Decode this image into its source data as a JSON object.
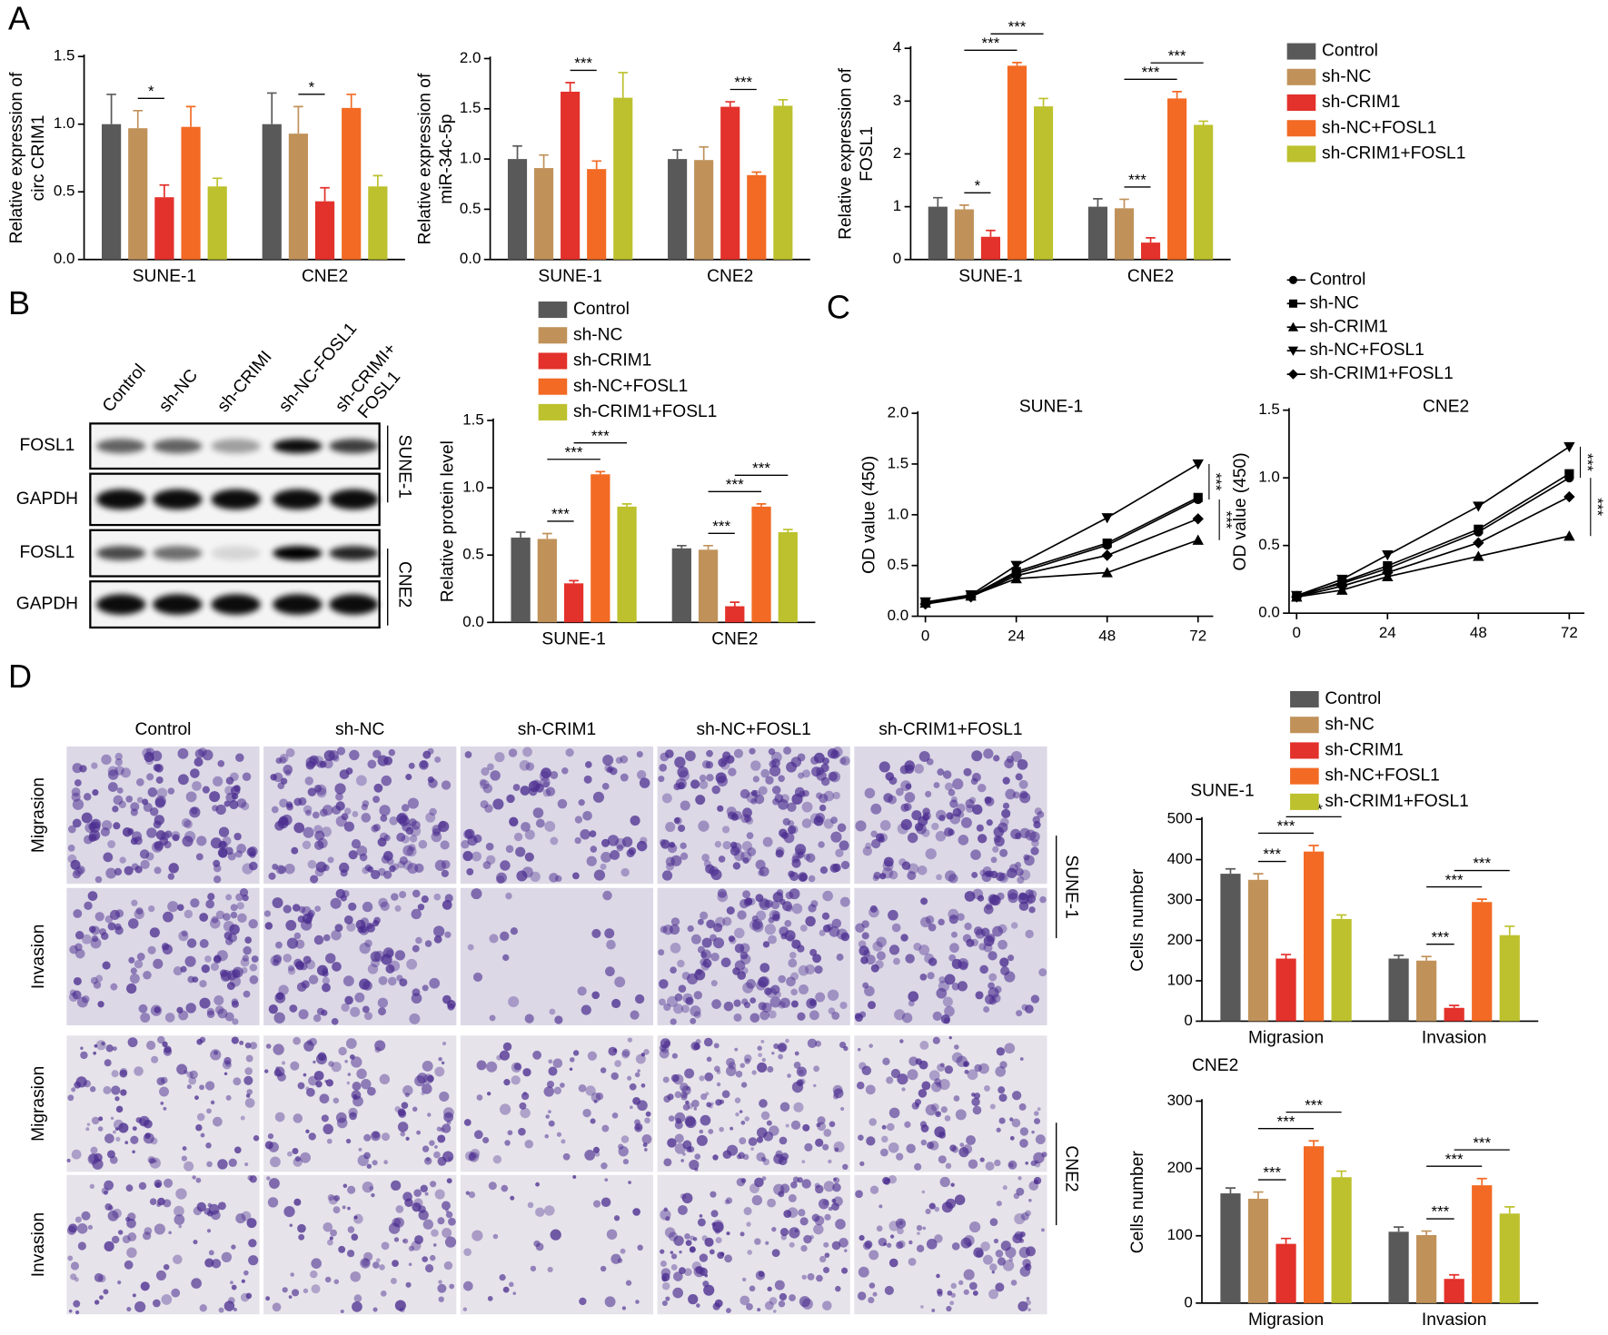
{
  "panel_labels": [
    "A",
    "B",
    "C",
    "D"
  ],
  "blot": {
    "lanes": [
      [
        "Control"
      ],
      [
        "sh-NC"
      ],
      [
        "sh-CRIMI"
      ],
      [
        "sh-NC-FOSL1"
      ],
      [
        "sh-CRIMI+",
        "FOSL1"
      ]
    ],
    "rows": [
      "FOSL1",
      "GAPDH",
      "FOSL1",
      "GAPDH"
    ],
    "cell_lines": [
      "SUNE-1",
      "CNE2"
    ]
  },
  "transwell": {
    "groups": [
      "Control",
      "sh-NC",
      "sh-CRIM1",
      "sh-NC+FOSL1",
      "sh-CRIM1+FOSL1"
    ],
    "rows": [
      "Migrasion",
      "Invasion",
      "Migrasion",
      "Invasion"
    ],
    "cell_lines": [
      "SUNE-1",
      "CNE2"
    ]
  },
  "chart_data": [
    {
      "type": "bar",
      "y_label": [
        "Relative expression of",
        "circ CRIM1"
      ],
      "categories": [
        "SUNE-1",
        "CNE2"
      ],
      "ylim": [
        0,
        1.5
      ],
      "yticks": [
        {
          "value": 0,
          "label": "0.0"
        },
        0.5,
        {
          "value": 1,
          "label": "1.0"
        },
        1.5
      ],
      "series": [
        {
          "color": "#595959",
          "values": [
            1.0,
            1.0
          ],
          "errors": [
            0.22,
            0.23
          ]
        },
        {
          "color": "#c0925a",
          "values": [
            0.97,
            0.93
          ],
          "errors": [
            0.13,
            0.2
          ]
        },
        {
          "color": "#e3312b",
          "values": [
            0.46,
            0.43
          ],
          "errors": [
            0.09,
            0.1
          ]
        },
        {
          "color": "#f26a24",
          "values": [
            0.98,
            1.12
          ],
          "errors": [
            0.15,
            0.1
          ]
        },
        {
          "color": "#bcc12d",
          "values": [
            0.54,
            0.54
          ],
          "errors": [
            0.06,
            0.08
          ]
        }
      ],
      "annotations": [
        {
          "text": "*",
          "category": 0,
          "series": [
            1,
            2
          ]
        },
        {
          "text": "*",
          "category": 1,
          "series": [
            1,
            2
          ]
        }
      ]
    },
    {
      "type": "bar",
      "y_label": [
        "Relative expression of",
        "miR-34c-5p"
      ],
      "categories": [
        "SUNE-1",
        "CNE2"
      ],
      "ylim": [
        0,
        2
      ],
      "yticks": [
        {
          "value": 0,
          "label": "0.0"
        },
        0.5,
        {
          "value": 1,
          "label": "1.0"
        },
        1.5,
        {
          "value": 2,
          "label": "2.0"
        }
      ],
      "series": [
        {
          "color": "#595959",
          "values": [
            1.0,
            1.0
          ],
          "errors": [
            0.13,
            0.09
          ]
        },
        {
          "color": "#c0925a",
          "values": [
            0.91,
            0.99
          ],
          "errors": [
            0.13,
            0.13
          ]
        },
        {
          "color": "#e3312b",
          "values": [
            1.67,
            1.52
          ],
          "errors": [
            0.09,
            0.05
          ]
        },
        {
          "color": "#f26a24",
          "values": [
            0.9,
            0.84
          ],
          "errors": [
            0.08,
            0.03
          ]
        },
        {
          "color": "#bcc12d",
          "values": [
            1.61,
            1.53
          ],
          "errors": [
            0.25,
            0.06
          ]
        }
      ],
      "annotations": [
        {
          "text": "***",
          "category": 0,
          "series": [
            2,
            3
          ]
        },
        {
          "text": "***",
          "category": 1,
          "series": [
            2,
            3
          ]
        }
      ]
    },
    {
      "type": "bar",
      "y_label": [
        "Relative expression of",
        "FOSL1"
      ],
      "categories": [
        "SUNE-1",
        "CNE2"
      ],
      "ylim": [
        0,
        4
      ],
      "yticks": [
        0,
        1,
        2,
        3,
        4
      ],
      "legend": true,
      "series": [
        {
          "name": "Control",
          "color": "#595959",
          "values": [
            1.0,
            1.0
          ],
          "errors": [
            0.17,
            0.15
          ]
        },
        {
          "name": "sh-NC",
          "color": "#c0925a",
          "values": [
            0.95,
            0.97
          ],
          "errors": [
            0.08,
            0.17
          ]
        },
        {
          "name": "sh-CRIM1",
          "color": "#e3312b",
          "values": [
            0.43,
            0.32
          ],
          "errors": [
            0.12,
            0.09
          ]
        },
        {
          "name": "sh-NC+FOSL1",
          "color": "#f26a24",
          "values": [
            3.67,
            3.05
          ],
          "errors": [
            0.06,
            0.13
          ]
        },
        {
          "name": "sh-CRIM1+FOSL1",
          "color": "#bcc12d",
          "values": [
            2.9,
            2.55
          ],
          "errors": [
            0.15,
            0.07
          ]
        }
      ],
      "annotations": [
        {
          "text": "*",
          "category": 0,
          "series": [
            1,
            2
          ]
        },
        {
          "text": "***",
          "category": 0,
          "series": [
            1,
            3
          ]
        },
        {
          "text": "***",
          "category": 0,
          "series": [
            2,
            4
          ]
        },
        {
          "text": "***",
          "category": 1,
          "series": [
            1,
            2
          ]
        },
        {
          "text": "***",
          "category": 1,
          "series": [
            1,
            3
          ]
        },
        {
          "text": "***",
          "category": 1,
          "series": [
            2,
            4
          ]
        }
      ]
    },
    {
      "type": "bar",
      "y_label": [
        "Relative protein level"
      ],
      "categories": [
        "SUNE-1",
        "CNE2"
      ],
      "ylim": [
        0,
        1.5
      ],
      "yticks": [
        {
          "value": 0,
          "label": "0.0"
        },
        0.5,
        {
          "value": 1,
          "label": "1.0"
        },
        1.5
      ],
      "legend": true,
      "series": [
        {
          "name": "Control",
          "color": "#595959",
          "values": [
            0.63,
            0.55
          ],
          "errors": [
            0.04,
            0.02
          ]
        },
        {
          "name": "sh-NC",
          "color": "#c0925a",
          "values": [
            0.62,
            0.54
          ],
          "errors": [
            0.04,
            0.03
          ]
        },
        {
          "name": "sh-CRIM1",
          "color": "#e3312b",
          "values": [
            0.29,
            0.12
          ],
          "errors": [
            0.02,
            0.03
          ]
        },
        {
          "name": "sh-NC+FOSL1",
          "color": "#f26a24",
          "values": [
            1.1,
            0.86
          ],
          "errors": [
            0.02,
            0.02
          ]
        },
        {
          "name": "sh-CRIM1+FOSL1",
          "color": "#bcc12d",
          "values": [
            0.86,
            0.67
          ],
          "errors": [
            0.02,
            0.02
          ]
        }
      ],
      "annotations": [
        {
          "text": "***",
          "category": 0,
          "series": [
            1,
            2
          ]
        },
        {
          "text": "***",
          "category": 0,
          "series": [
            1,
            3
          ]
        },
        {
          "text": "***",
          "category": 0,
          "series": [
            2,
            4
          ]
        },
        {
          "text": "***",
          "category": 1,
          "series": [
            1,
            2
          ]
        },
        {
          "text": "***",
          "category": 1,
          "series": [
            1,
            3
          ]
        },
        {
          "text": "***",
          "category": 1,
          "series": [
            2,
            4
          ]
        }
      ]
    },
    {
      "type": "line",
      "title": "SUNE-1",
      "y_label": [
        "OD value (450)"
      ],
      "x": [
        0,
        12,
        24,
        48,
        72
      ],
      "xlim": [
        -2,
        76
      ],
      "xticks": [
        0,
        24,
        48,
        72
      ],
      "ylim": [
        0,
        2
      ],
      "yticks": [
        {
          "value": 0,
          "label": "0.0"
        },
        0.5,
        {
          "value": 1,
          "label": "1.0"
        },
        1.5,
        {
          "value": 2,
          "label": "2.0"
        }
      ],
      "legend": true,
      "series": [
        {
          "name": "Control",
          "color": "#000000",
          "marker": "circle",
          "values": [
            0.13,
            0.2,
            0.42,
            0.7,
            1.15
          ]
        },
        {
          "name": "sh-NC",
          "color": "#000000",
          "marker": "square",
          "values": [
            0.14,
            0.2,
            0.44,
            0.72,
            1.17
          ]
        },
        {
          "name": "sh-CRIM1",
          "color": "#000000",
          "marker": "triangle-up",
          "values": [
            0.13,
            0.2,
            0.37,
            0.43,
            0.75
          ]
        },
        {
          "name": "sh-NC+FOSL1",
          "color": "#000000",
          "marker": "triangle-down",
          "values": [
            0.14,
            0.21,
            0.5,
            0.97,
            1.5
          ]
        },
        {
          "name": "sh-CRIM1+FOSL1",
          "color": "#000000",
          "marker": "diamond",
          "values": [
            0.12,
            0.19,
            0.4,
            0.6,
            0.96
          ]
        }
      ],
      "annotations": [
        {
          "text": "***",
          "series": [
            3,
            0
          ]
        },
        {
          "text": "***",
          "series": [
            0,
            2
          ]
        }
      ]
    },
    {
      "type": "line",
      "title": "CNE2",
      "y_label": [
        "OD value (450)"
      ],
      "x": [
        0,
        12,
        24,
        48,
        72
      ],
      "xlim": [
        -2,
        76
      ],
      "xticks": [
        0,
        24,
        48,
        72
      ],
      "ylim": [
        0,
        1.5
      ],
      "yticks": [
        {
          "value": 0,
          "label": "0.0"
        },
        0.5,
        {
          "value": 1,
          "label": "1.0"
        },
        1.5
      ],
      "series": [
        {
          "color": "#000000",
          "marker": "circle",
          "values": [
            0.13,
            0.22,
            0.33,
            0.6,
            1.0
          ]
        },
        {
          "color": "#000000",
          "marker": "square",
          "values": [
            0.12,
            0.23,
            0.35,
            0.62,
            1.03
          ]
        },
        {
          "color": "#000000",
          "marker": "triangle-up",
          "values": [
            0.12,
            0.17,
            0.27,
            0.42,
            0.57
          ]
        },
        {
          "color": "#000000",
          "marker": "triangle-down",
          "values": [
            0.13,
            0.25,
            0.43,
            0.79,
            1.23
          ]
        },
        {
          "color": "#000000",
          "marker": "diamond",
          "values": [
            0.12,
            0.2,
            0.3,
            0.52,
            0.86
          ]
        }
      ],
      "annotations": [
        {
          "text": "***",
          "series": [
            3,
            0
          ]
        },
        {
          "text": "***",
          "series": [
            0,
            2
          ]
        }
      ]
    },
    {
      "type": "bar",
      "title": "SUNE-1",
      "y_label": [
        "Cells number"
      ],
      "categories": [
        "Migrasion",
        "Invasion"
      ],
      "ylim": [
        0,
        500
      ],
      "yticks": [
        0,
        100,
        200,
        300,
        400,
        500
      ],
      "legend": true,
      "series": [
        {
          "name": "Control",
          "color": "#595959",
          "values": [
            365,
            155
          ],
          "errors": [
            12,
            8
          ]
        },
        {
          "name": "sh-NC",
          "color": "#c0925a",
          "values": [
            350,
            150
          ],
          "errors": [
            15,
            10
          ]
        },
        {
          "name": "sh-CRIM1",
          "color": "#e3312b",
          "values": [
            155,
            33
          ],
          "errors": [
            10,
            6
          ]
        },
        {
          "name": "sh-NC+FOSL1",
          "color": "#f26a24",
          "values": [
            420,
            295
          ],
          "errors": [
            15,
            7
          ]
        },
        {
          "name": "sh-CRIM1+FOSL1",
          "color": "#bcc12d",
          "values": [
            253,
            213
          ],
          "errors": [
            10,
            22
          ]
        }
      ],
      "annotations": [
        {
          "text": "***",
          "category": 0,
          "series": [
            1,
            2
          ]
        },
        {
          "text": "***",
          "category": 0,
          "series": [
            1,
            3
          ]
        },
        {
          "text": "***",
          "category": 0,
          "series": [
            2,
            4
          ]
        },
        {
          "text": "***",
          "category": 1,
          "series": [
            1,
            2
          ]
        },
        {
          "text": "***",
          "category": 1,
          "series": [
            1,
            3
          ]
        },
        {
          "text": "***",
          "category": 1,
          "series": [
            2,
            4
          ]
        }
      ]
    },
    {
      "type": "bar",
      "title": "CNE2",
      "y_label": [
        "Cells number"
      ],
      "categories": [
        "Migrasion",
        "Invasion"
      ],
      "ylim": [
        0,
        300
      ],
      "yticks": [
        0,
        100,
        200,
        300
      ],
      "series": [
        {
          "color": "#595959",
          "values": [
            163,
            106
          ],
          "errors": [
            8,
            7
          ]
        },
        {
          "color": "#c0925a",
          "values": [
            155,
            101
          ],
          "errors": [
            10,
            6
          ]
        },
        {
          "color": "#e3312b",
          "values": [
            88,
            36
          ],
          "errors": [
            8,
            6
          ]
        },
        {
          "color": "#f26a24",
          "values": [
            233,
            175
          ],
          "errors": [
            8,
            10
          ]
        },
        {
          "color": "#bcc12d",
          "values": [
            187,
            133
          ],
          "errors": [
            9,
            10
          ]
        }
      ],
      "annotations": [
        {
          "text": "***",
          "category": 0,
          "series": [
            1,
            2
          ]
        },
        {
          "text": "***",
          "category": 0,
          "series": [
            1,
            3
          ]
        },
        {
          "text": "***",
          "category": 0,
          "series": [
            2,
            4
          ]
        },
        {
          "text": "***",
          "category": 1,
          "series": [
            1,
            2
          ]
        },
        {
          "text": "***",
          "category": 1,
          "series": [
            1,
            3
          ]
        },
        {
          "text": "***",
          "category": 1,
          "series": [
            2,
            4
          ]
        }
      ]
    }
  ]
}
